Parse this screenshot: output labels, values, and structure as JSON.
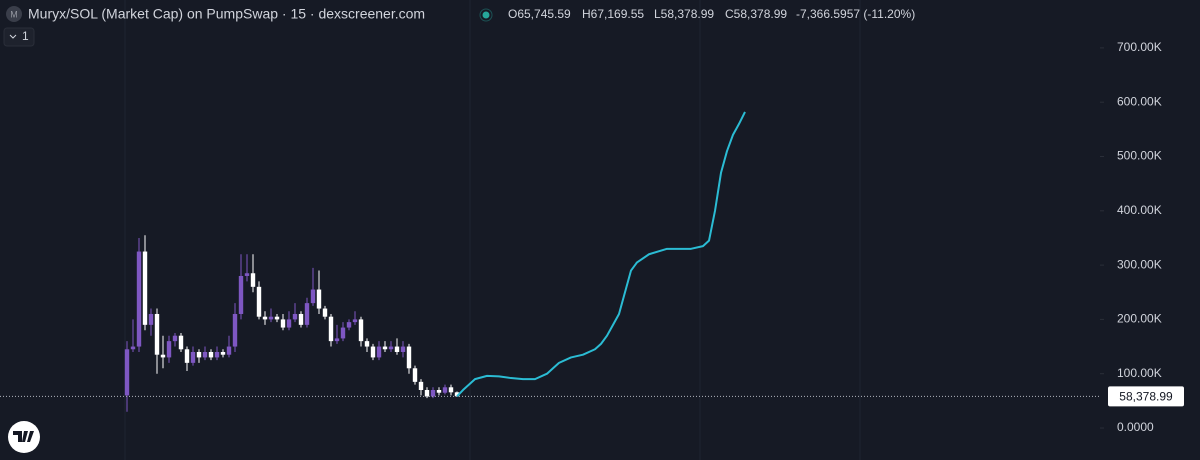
{
  "header": {
    "icon_letter": "M",
    "title": "Muryx/SOL (Market Cap) on PumpSwap · 15 · dexscreener.com",
    "ohlc": [
      "O65,745.59",
      "H67,169.55",
      "L58,378.99",
      "C58,378.99",
      "-7,366.5957 (-11.20%)"
    ],
    "indicator_count": "1"
  },
  "chart_data": {
    "type": "candlestick",
    "up_color": "#7e57c2",
    "down_color": "#ffffff",
    "ylim": [
      -58900,
      788200
    ],
    "yticks": [
      {
        "value": 0,
        "label": "0.0000"
      },
      {
        "value": 100000,
        "label": "100.00K"
      },
      {
        "value": 200000,
        "label": "200.00K"
      },
      {
        "value": 300000,
        "label": "300.00K"
      },
      {
        "value": 400000,
        "label": "400.00K"
      },
      {
        "value": 500000,
        "label": "500.00K"
      },
      {
        "value": 600000,
        "label": "600.00K"
      },
      {
        "value": 700000,
        "label": "700.00K"
      }
    ],
    "open": [
      60000,
      145000,
      150000,
      325000,
      190000,
      210000,
      135000,
      130000,
      160000,
      170000,
      145000,
      120000,
      140000,
      130000,
      140000,
      130000,
      140000,
      135000,
      150000,
      210000,
      280000,
      285000,
      260000,
      205000,
      200000,
      205000,
      200000,
      185000,
      200000,
      210000,
      190000,
      230000,
      255000,
      220000,
      205000,
      160000,
      165000,
      185000,
      195000,
      200000,
      160000,
      150000,
      130000,
      150000,
      145000,
      150000,
      140000,
      150000,
      110000,
      85000,
      70000,
      58000,
      70000,
      65000,
      75000,
      65745.59
    ],
    "high": [
      160000,
      200000,
      350000,
      355000,
      220000,
      220000,
      170000,
      170000,
      175000,
      175000,
      150000,
      150000,
      145000,
      150000,
      145000,
      150000,
      145000,
      170000,
      230000,
      320000,
      320000,
      320000,
      270000,
      215000,
      220000,
      210000,
      210000,
      215000,
      230000,
      215000,
      240000,
      295000,
      290000,
      225000,
      210000,
      190000,
      195000,
      200000,
      215000,
      205000,
      165000,
      155000,
      160000,
      160000,
      160000,
      165000,
      160000,
      155000,
      115000,
      90000,
      75000,
      75000,
      75000,
      80000,
      80000,
      67169.55
    ],
    "low": [
      30000,
      140000,
      140000,
      180000,
      170000,
      100000,
      110000,
      120000,
      150000,
      140000,
      105000,
      115000,
      120000,
      125000,
      125000,
      125000,
      130000,
      130000,
      140000,
      200000,
      270000,
      250000,
      200000,
      190000,
      195000,
      195000,
      180000,
      180000,
      195000,
      185000,
      185000,
      225000,
      210000,
      200000,
      150000,
      155000,
      160000,
      180000,
      190000,
      150000,
      140000,
      125000,
      125000,
      140000,
      140000,
      135000,
      130000,
      100000,
      80000,
      60000,
      55000,
      55000,
      60000,
      62000,
      60000,
      58378.99
    ],
    "close": [
      145000,
      150000,
      325000,
      190000,
      210000,
      135000,
      130000,
      160000,
      170000,
      145000,
      120000,
      140000,
      130000,
      140000,
      130000,
      140000,
      135000,
      150000,
      210000,
      280000,
      285000,
      260000,
      205000,
      200000,
      205000,
      200000,
      185000,
      200000,
      210000,
      190000,
      230000,
      255000,
      220000,
      205000,
      160000,
      165000,
      185000,
      195000,
      200000,
      160000,
      150000,
      130000,
      150000,
      145000,
      150000,
      140000,
      150000,
      110000,
      85000,
      70000,
      58000,
      70000,
      65000,
      75000,
      65745.59,
      58378.99
    ],
    "current_price": {
      "value": 58378.99,
      "label": "58,378.99"
    },
    "line": {
      "color": "#2bbcd4",
      "x": [
        55,
        56,
        58,
        60,
        62,
        64,
        66,
        68,
        70,
        71,
        72,
        74,
        76,
        78,
        79,
        80,
        81,
        82,
        83,
        84,
        85,
        87,
        90,
        94,
        96,
        97,
        98,
        99,
        100,
        101,
        102,
        103
      ],
      "values": [
        58378.99,
        70000,
        90000,
        96000,
        95000,
        92000,
        90000,
        90000,
        100000,
        110000,
        120000,
        130000,
        135000,
        145000,
        155000,
        170000,
        190000,
        210000,
        250000,
        290000,
        305000,
        320000,
        330000,
        330000,
        335000,
        345000,
        400000,
        470000,
        510000,
        540000,
        560000,
        582000
      ]
    }
  }
}
